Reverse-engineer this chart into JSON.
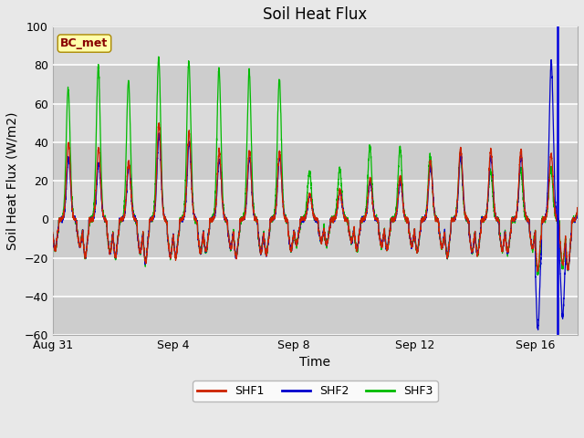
{
  "title": "Soil Heat Flux",
  "ylabel": "Soil Heat Flux (W/m2)",
  "xlabel": "Time",
  "ylim": [
    -60,
    100
  ],
  "yticks": [
    -60,
    -40,
    -20,
    0,
    20,
    40,
    60,
    80,
    100
  ],
  "xtick_labels": [
    "Aug 31",
    "Sep 4",
    "Sep 8",
    "Sep 12",
    "Sep 16"
  ],
  "xtick_positions": [
    0,
    4,
    8,
    12,
    16
  ],
  "fig_facecolor": "#e8e8e8",
  "plot_bg_color": "#d4d4d4",
  "grid_color": "#c0c0c0",
  "shf1_color": "#cc2200",
  "shf2_color": "#0000cc",
  "shf3_color": "#00bb00",
  "vline_color": "#0000dd",
  "vline_x": 16.72,
  "bc_met_label": "BC_met",
  "bc_met_fg": "#880000",
  "bc_met_bg": "#ffffaa",
  "bc_met_edge": "#aa8800",
  "legend_labels": [
    "SHF1",
    "SHF2",
    "SHF3"
  ],
  "title_fontsize": 12,
  "axis_label_fontsize": 10,
  "tick_fontsize": 9,
  "legend_fontsize": 9,
  "start_day": 0,
  "end_day": 17.4,
  "num_points": 5000,
  "daily_peaks_shf1": [
    40,
    37,
    30,
    50,
    45,
    35,
    35,
    35,
    13,
    15,
    21,
    22,
    30,
    37,
    36,
    36,
    34,
    34
  ],
  "daily_peaks_shf2": [
    32,
    29,
    28,
    44,
    40,
    31,
    32,
    33,
    13,
    14,
    20,
    20,
    28,
    34,
    33,
    33,
    82,
    20
  ],
  "daily_peaks_shf3": [
    68,
    79,
    72,
    84,
    82,
    78,
    77,
    73,
    25,
    26,
    38,
    37,
    33,
    33,
    25,
    26,
    26,
    25
  ],
  "daily_troughs_shf1": [
    -12,
    -15,
    -15,
    -17,
    -15,
    -13,
    -15,
    -14,
    -10,
    -10,
    -12,
    -12,
    -13,
    -15,
    -14,
    -13,
    -20,
    -20
  ],
  "daily_troughs_shf2": [
    -12,
    -15,
    -15,
    -17,
    -15,
    -13,
    -15,
    -14,
    -10,
    -10,
    -12,
    -12,
    -13,
    -15,
    -14,
    -13,
    -44,
    -20
  ],
  "daily_troughs_shf3": [
    -12,
    -15,
    -15,
    -17,
    -15,
    -13,
    -15,
    -14,
    -10,
    -10,
    -12,
    -12,
    -13,
    -15,
    -14,
    -13,
    -22,
    -20
  ],
  "peak_hour": 0.52,
  "trough_sigma": 0.055,
  "peak_sigma": 0.065
}
